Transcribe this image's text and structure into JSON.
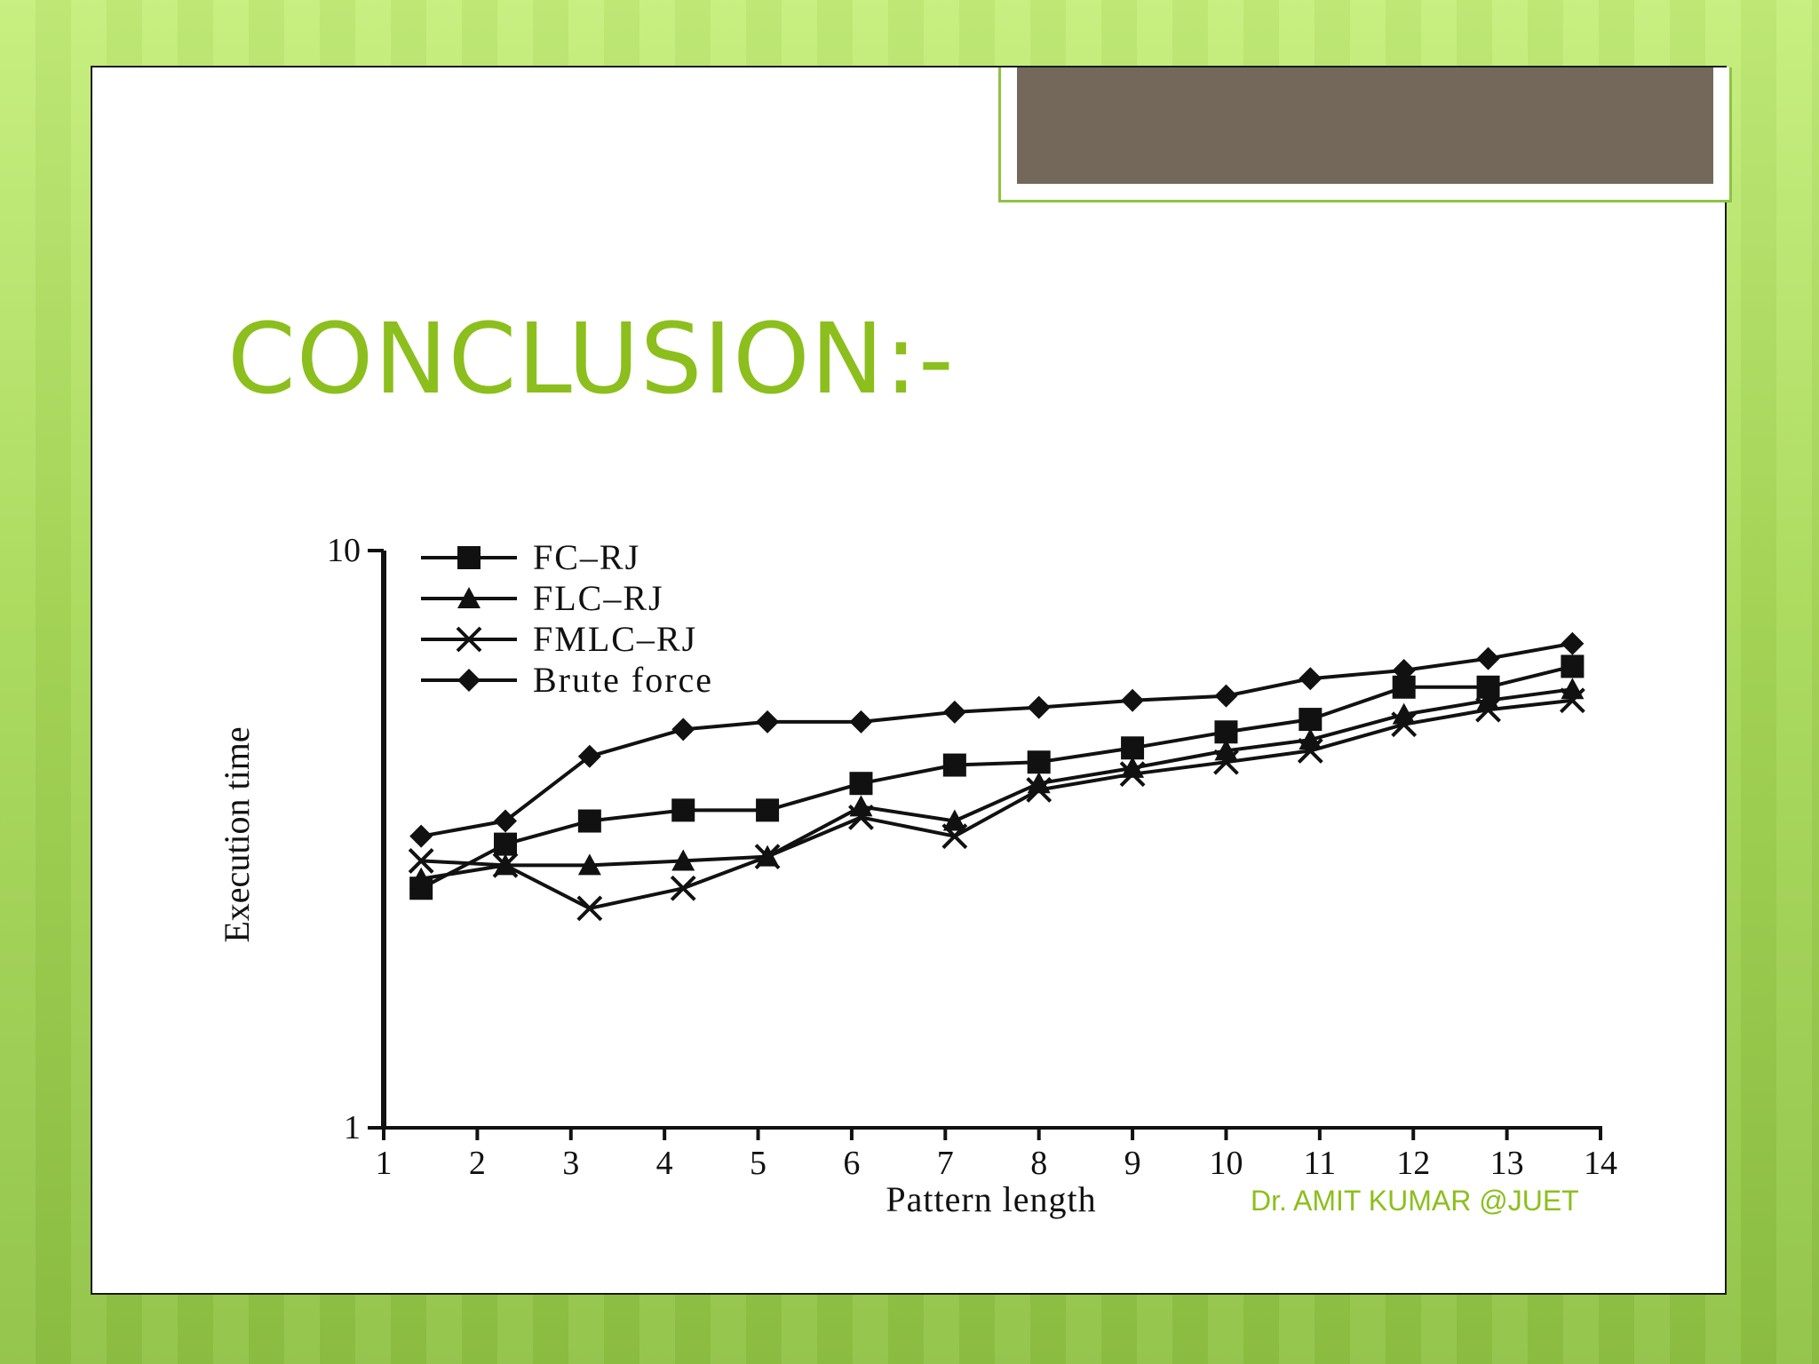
{
  "slide": {
    "title": "CONCLUSION:-",
    "footer": "Dr. AMIT KUMAR @JUET"
  },
  "colors": {
    "title": "#8cbf1d",
    "header_box": "#73685a",
    "chart_ink": "#111111"
  },
  "chart_data": {
    "type": "line",
    "xlabel": "Pattern length",
    "ylabel": "Execution time",
    "xlim": [
      1,
      14
    ],
    "ylim": [
      1,
      10
    ],
    "yscale": "log",
    "x_ticks": [
      "1",
      "2",
      "3",
      "4",
      "5",
      "6",
      "7",
      "8",
      "9",
      "10",
      "11",
      "12",
      "13",
      "14"
    ],
    "y_ticks": [
      "1",
      "10"
    ],
    "legend_position": "top-left",
    "series": [
      {
        "name": "FC–RJ",
        "marker": "square",
        "x": [
          1.4,
          2.3,
          3.2,
          4.2,
          5.1,
          6.1,
          7.1,
          8.0,
          9.0,
          10.0,
          10.9,
          11.9,
          12.8,
          13.7
        ],
        "y": [
          2.6,
          3.1,
          3.4,
          3.55,
          3.55,
          3.95,
          4.25,
          4.3,
          4.55,
          4.85,
          5.1,
          5.8,
          5.8,
          6.3
        ]
      },
      {
        "name": "FLC–RJ",
        "marker": "triangle",
        "x": [
          1.4,
          2.3,
          3.2,
          4.2,
          5.1,
          6.1,
          7.1,
          8.0,
          9.0,
          10.0,
          10.9,
          11.9,
          12.8,
          13.7
        ],
        "y": [
          2.7,
          2.85,
          2.85,
          2.9,
          2.95,
          3.6,
          3.4,
          3.95,
          4.2,
          4.5,
          4.7,
          5.2,
          5.5,
          5.75
        ]
      },
      {
        "name": "FMLC–RJ",
        "marker": "x",
        "x": [
          1.4,
          2.3,
          3.2,
          4.2,
          5.1,
          6.1,
          7.1,
          8.0,
          9.0,
          10.0,
          10.9,
          11.9,
          12.8,
          13.7
        ],
        "y": [
          2.9,
          2.85,
          2.4,
          2.6,
          2.95,
          3.45,
          3.2,
          3.85,
          4.1,
          4.3,
          4.5,
          5.0,
          5.3,
          5.5
        ]
      },
      {
        "name": "Brute force",
        "marker": "diamond",
        "x": [
          1.4,
          2.3,
          3.2,
          4.2,
          5.1,
          6.1,
          7.1,
          8.0,
          9.0,
          10.0,
          10.9,
          11.9,
          12.8,
          13.7
        ],
        "y": [
          3.2,
          3.4,
          4.4,
          4.9,
          5.05,
          5.05,
          5.25,
          5.35,
          5.5,
          5.6,
          6.0,
          6.2,
          6.5,
          6.9
        ]
      }
    ]
  }
}
